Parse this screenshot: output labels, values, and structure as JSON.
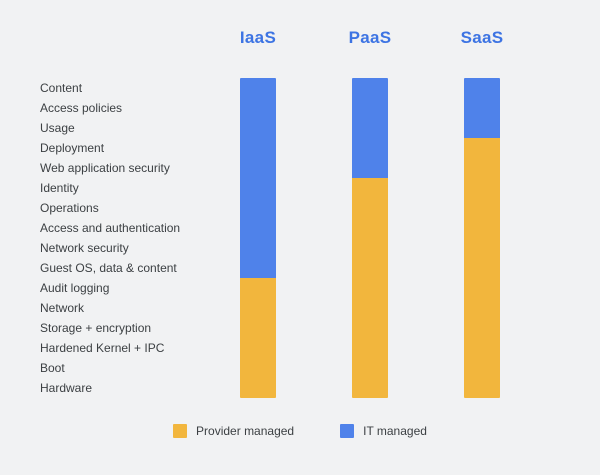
{
  "chart_data": {
    "type": "bar",
    "variant": "stacked-vertical-columns",
    "title": "",
    "categories": [
      "IaaS",
      "PaaS",
      "SaaS"
    ],
    "stack_layers": [
      "Content",
      "Access policies",
      "Usage",
      "Deployment",
      "Web application security",
      "Identity",
      "Operations",
      "Access and authentication",
      "Network security",
      "Guest OS, data & content",
      "Audit logging",
      "Network",
      "Storage + encryption",
      "Hardened Kernel + IPC",
      "Boot",
      "Hardware"
    ],
    "total_layers": 16,
    "series": [
      {
        "name": "IT managed",
        "values": [
          10,
          5,
          3
        ]
      },
      {
        "name": "Provider managed",
        "values": [
          6,
          11,
          13
        ]
      }
    ],
    "legend": [
      {
        "label": "Provider managed"
      },
      {
        "label": "IT managed"
      }
    ],
    "legend_position": "bottom",
    "grid": false,
    "colors": {
      "provider_managed": "#f2b63d",
      "it_managed": "#4f82ea",
      "header_text": "#3d74e3",
      "label_text": "#3c4043",
      "background": "#f1f2f3"
    }
  }
}
